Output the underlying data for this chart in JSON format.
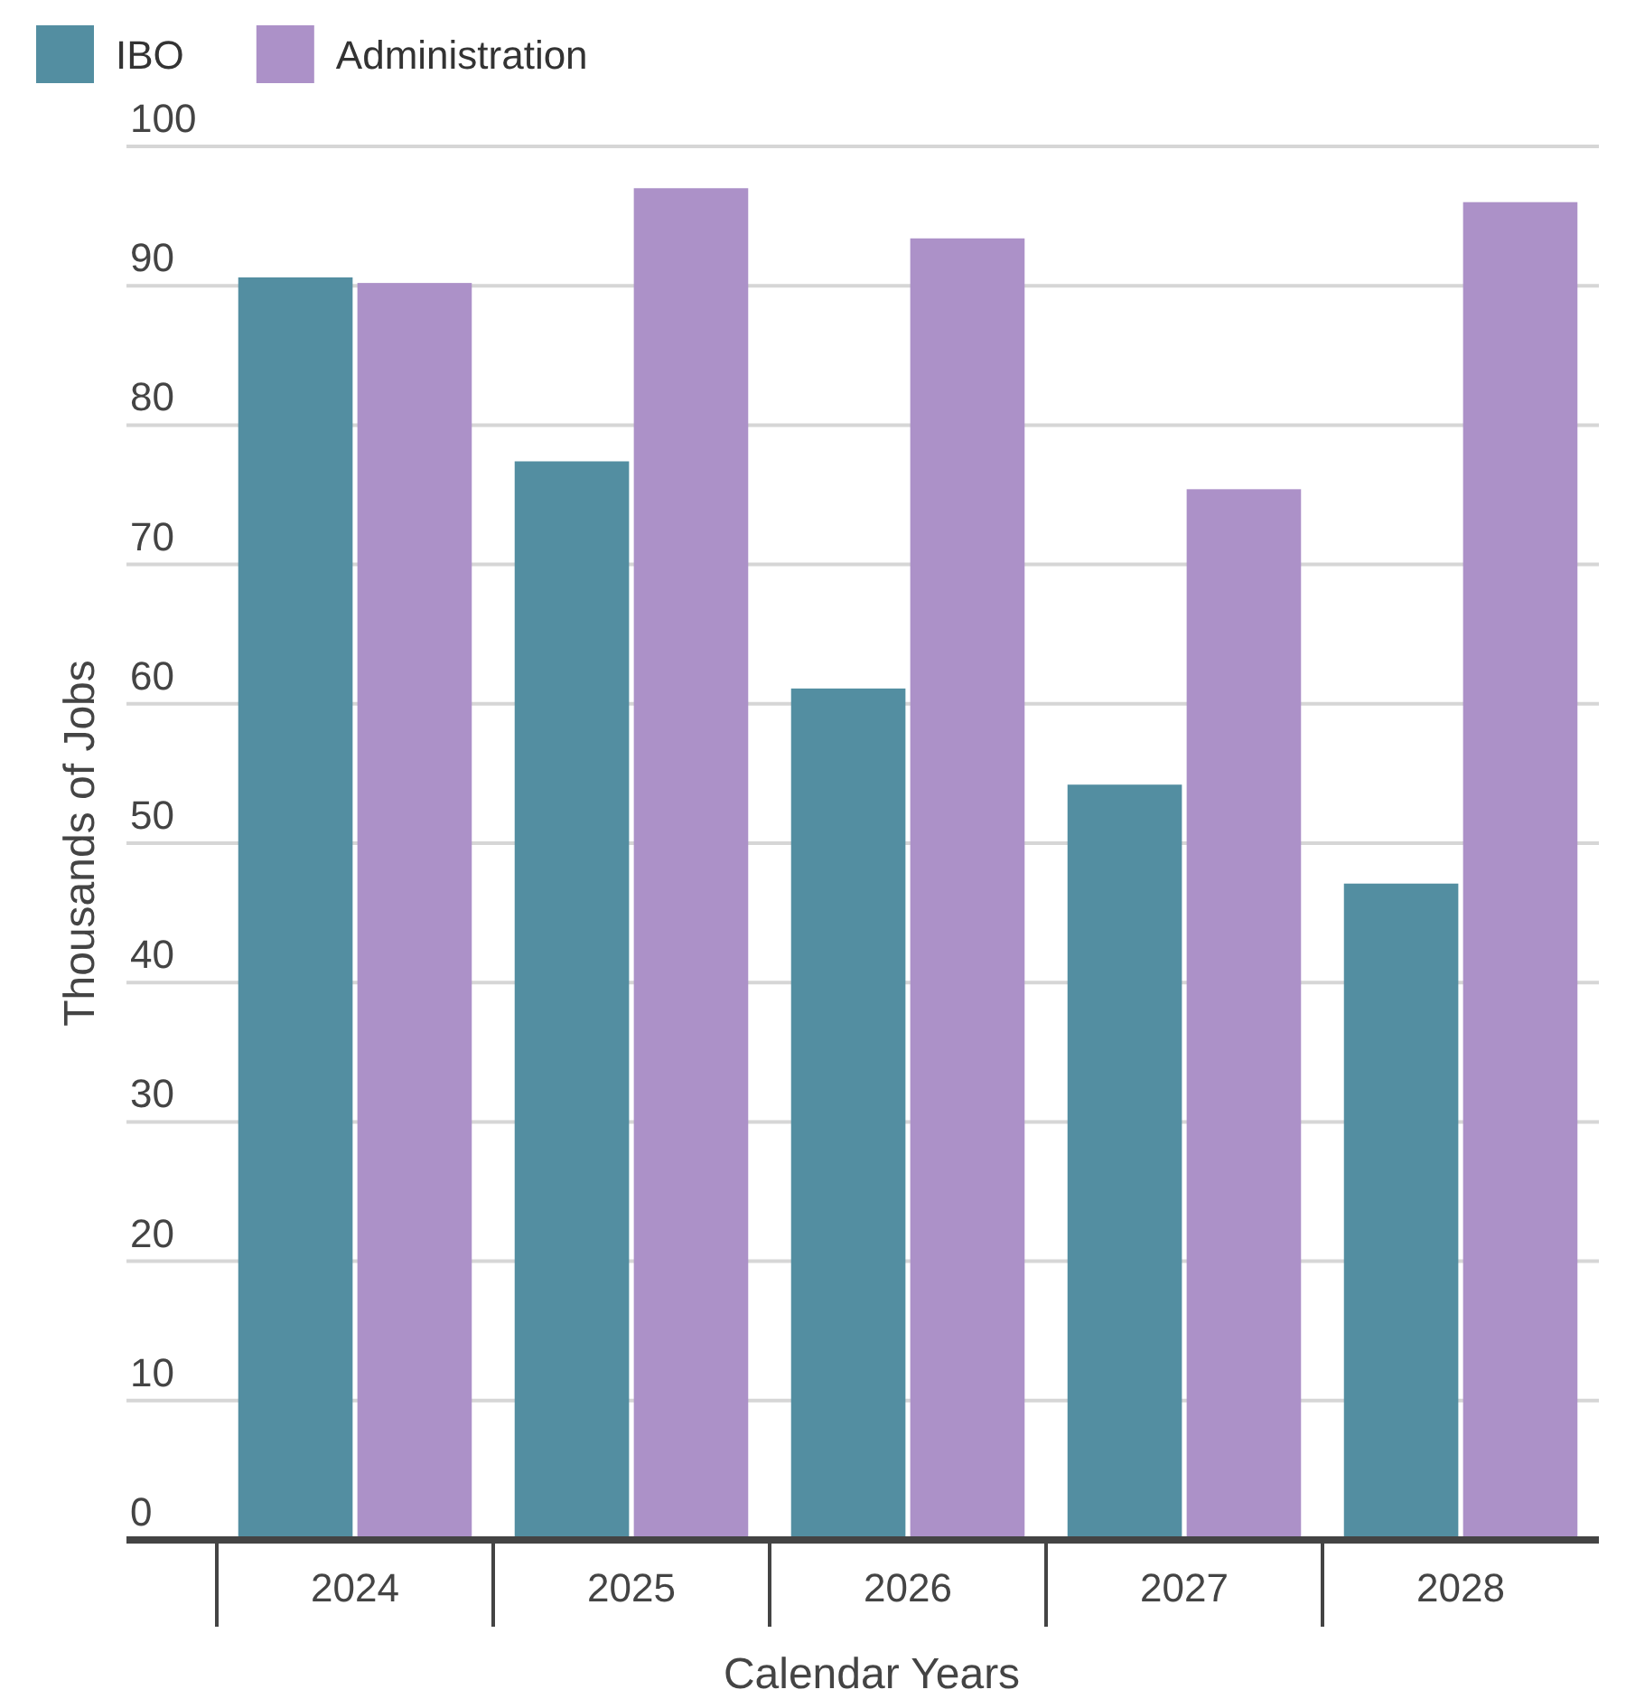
{
  "chart_data": {
    "type": "bar",
    "xlabel": "Calendar Years",
    "ylabel": "Thousands of Jobs",
    "categories": [
      "2024",
      "2025",
      "2026",
      "2027",
      "2028"
    ],
    "series": [
      {
        "name": "IBO",
        "color": "#538ea1",
        "values": [
          90.6,
          77.4,
          61.1,
          54.2,
          47.1
        ]
      },
      {
        "name": "Administration",
        "color": "#ac91c8",
        "values": [
          90.2,
          97.0,
          93.4,
          75.4,
          96.0
        ]
      }
    ],
    "ylim": [
      0,
      100
    ],
    "yticks": [
      0,
      10,
      20,
      30,
      40,
      50,
      60,
      70,
      80,
      90,
      100
    ],
    "grid": "y",
    "legend": "top left"
  }
}
